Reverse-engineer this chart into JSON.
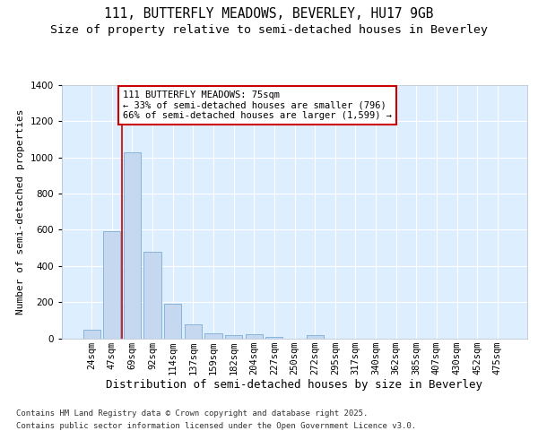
{
  "title_line1": "111, BUTTERFLY MEADOWS, BEVERLEY, HU17 9GB",
  "title_line2": "Size of property relative to semi-detached houses in Beverley",
  "xlabel": "Distribution of semi-detached houses by size in Beverley",
  "ylabel": "Number of semi-detached properties",
  "categories": [
    "24sqm",
    "47sqm",
    "69sqm",
    "92sqm",
    "114sqm",
    "137sqm",
    "159sqm",
    "182sqm",
    "204sqm",
    "227sqm",
    "250sqm",
    "272sqm",
    "295sqm",
    "317sqm",
    "340sqm",
    "362sqm",
    "385sqm",
    "407sqm",
    "430sqm",
    "452sqm",
    "475sqm"
  ],
  "values": [
    45,
    590,
    1030,
    480,
    190,
    75,
    25,
    18,
    20,
    5,
    0,
    18,
    0,
    0,
    0,
    0,
    0,
    0,
    0,
    0,
    0
  ],
  "bar_color": "#c5d8f0",
  "bar_edge_color": "#7aadd4",
  "red_line_bar_index": 2,
  "annotation_text": "111 BUTTERFLY MEADOWS: 75sqm\n← 33% of semi-detached houses are smaller (796)\n66% of semi-detached houses are larger (1,599) →",
  "annotation_box_facecolor": "#ffffff",
  "annotation_box_edgecolor": "#cc0000",
  "ylim_max": 1400,
  "ytick_step": 200,
  "background_color": "#ddeeff",
  "grid_color": "#ffffff",
  "footer_line1": "Contains HM Land Registry data © Crown copyright and database right 2025.",
  "footer_line2": "Contains public sector information licensed under the Open Government Licence v3.0.",
  "title_fontsize": 10.5,
  "subtitle_fontsize": 9.5,
  "ylabel_fontsize": 8,
  "xlabel_fontsize": 9,
  "tick_fontsize": 7.5,
  "annotation_fontsize": 7.5,
  "footer_fontsize": 6.5
}
